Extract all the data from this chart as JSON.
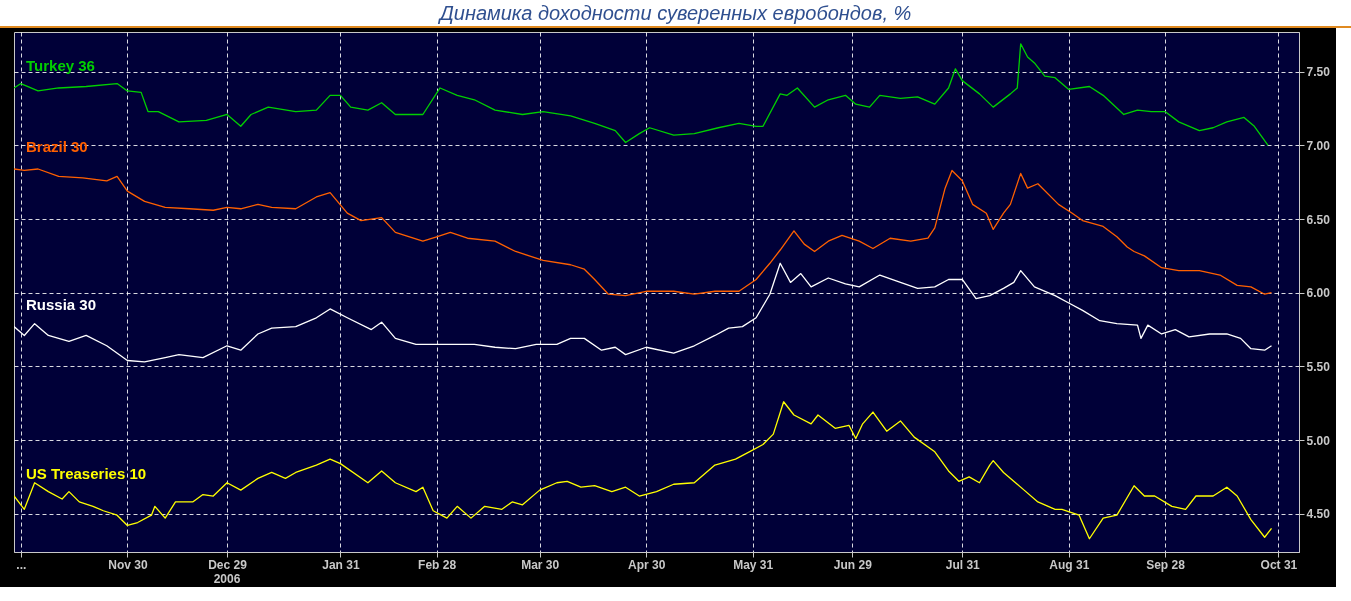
{
  "chart_data": {
    "type": "line",
    "title": "Динамика доходности суверенных евробондов, %",
    "xlim": [
      "2005-10-28",
      "2006-11-06"
    ],
    "ylim": [
      4.24,
      7.77
    ],
    "xticks": [
      {
        "value": "2005-10-30",
        "label": "..."
      },
      {
        "value": "2005-11-30",
        "label": "Nov 30"
      },
      {
        "value": "2005-12-29",
        "label": "Dec 29"
      },
      {
        "value": "2006-01-31",
        "label": "Jan 31"
      },
      {
        "value": "2006-02-28",
        "label": "Feb 28"
      },
      {
        "value": "2006-03-30",
        "label": "Mar 30"
      },
      {
        "value": "2006-04-30",
        "label": "Apr 30"
      },
      {
        "value": "2006-05-31",
        "label": "May 31"
      },
      {
        "value": "2006-06-29",
        "label": "Jun 29"
      },
      {
        "value": "2006-07-31",
        "label": "Jul 31"
      },
      {
        "value": "2006-08-31",
        "label": "Aug 31"
      },
      {
        "value": "2006-09-28",
        "label": "Sep 28"
      },
      {
        "value": "2006-10-31",
        "label": "Oct 31"
      }
    ],
    "yticks": [
      {
        "value": 4.5,
        "label": "4.50"
      },
      {
        "value": 5,
        "label": "5.00"
      },
      {
        "value": 5.5,
        "label": "5.50"
      },
      {
        "value": 6,
        "label": "6.00"
      },
      {
        "value": 6.5,
        "label": "6.50"
      },
      {
        "value": 7,
        "label": "7.00"
      },
      {
        "value": 7.5,
        "label": "7.50"
      }
    ],
    "grid": true,
    "annotations": [
      "2006"
    ],
    "series": [
      {
        "name": "Turkey 36",
        "color": "#00d000",
        "x": [
          "2005-10-28",
          "2005-10-30",
          "2005-11-04",
          "2005-11-10",
          "2005-11-18",
          "2005-11-27",
          "2005-11-30",
          "2005-12-04",
          "2005-12-06",
          "2005-12-09",
          "2005-12-15",
          "2005-12-23",
          "2005-12-29",
          "2006-01-02",
          "2006-01-05",
          "2006-01-10",
          "2006-01-18",
          "2006-01-24",
          "2006-01-28",
          "2006-01-31",
          "2006-02-03",
          "2006-02-08",
          "2006-02-12",
          "2006-02-16",
          "2006-02-24",
          "2006-03-01",
          "2006-03-06",
          "2006-03-11",
          "2006-03-17",
          "2006-03-25",
          "2006-03-31",
          "2006-04-08",
          "2006-04-15",
          "2006-04-21",
          "2006-04-24",
          "2006-04-28",
          "2006-05-01",
          "2006-05-08",
          "2006-05-14",
          "2006-05-21",
          "2006-05-27",
          "2006-06-01",
          "2006-06-03",
          "2006-06-08",
          "2006-06-10",
          "2006-06-13",
          "2006-06-18",
          "2006-06-22",
          "2006-06-27",
          "2006-06-30",
          "2006-07-04",
          "2006-07-07",
          "2006-07-13",
          "2006-07-18",
          "2006-07-23",
          "2006-07-27",
          "2006-07-29",
          "2006-07-31",
          "2006-08-05",
          "2006-08-09",
          "2006-08-14",
          "2006-08-16",
          "2006-08-17",
          "2006-08-19",
          "2006-08-21",
          "2006-08-24",
          "2006-08-27",
          "2006-08-31",
          "2006-09-06",
          "2006-09-10",
          "2006-09-16",
          "2006-09-20",
          "2006-09-24",
          "2006-09-28",
          "2006-10-02",
          "2006-10-08",
          "2006-10-12",
          "2006-10-16",
          "2006-10-21",
          "2006-10-24",
          "2006-10-28"
        ],
        "values": [
          7.39,
          7.42,
          7.37,
          7.39,
          7.4,
          7.42,
          7.37,
          7.36,
          7.23,
          7.23,
          7.16,
          7.17,
          7.21,
          7.13,
          7.21,
          7.26,
          7.23,
          7.24,
          7.34,
          7.34,
          7.26,
          7.24,
          7.29,
          7.21,
          7.21,
          7.39,
          7.34,
          7.31,
          7.24,
          7.21,
          7.23,
          7.2,
          7.15,
          7.1,
          7.02,
          7.08,
          7.12,
          7.07,
          7.08,
          7.12,
          7.15,
          7.13,
          7.13,
          7.35,
          7.34,
          7.39,
          7.26,
          7.31,
          7.34,
          7.28,
          7.26,
          7.34,
          7.32,
          7.33,
          7.28,
          7.39,
          7.52,
          7.44,
          7.35,
          7.26,
          7.35,
          7.39,
          7.69,
          7.6,
          7.56,
          7.47,
          7.46,
          7.38,
          7.4,
          7.34,
          7.21,
          7.24,
          7.23,
          7.23,
          7.16,
          7.1,
          7.12,
          7.16,
          7.19,
          7.13,
          7.0
        ]
      },
      {
        "name": "Brazil 30",
        "color": "#ff6000",
        "x": [
          "2005-10-28",
          "2005-10-31",
          "2005-11-04",
          "2005-11-10",
          "2005-11-17",
          "2005-11-24",
          "2005-11-27",
          "2005-11-30",
          "2005-12-05",
          "2005-12-11",
          "2005-12-18",
          "2005-12-25",
          "2005-12-29",
          "2006-01-02",
          "2006-01-07",
          "2006-01-11",
          "2006-01-18",
          "2006-01-24",
          "2006-01-28",
          "2006-02-02",
          "2006-02-06",
          "2006-02-12",
          "2006-02-16",
          "2006-02-24",
          "2006-02-28",
          "2006-03-04",
          "2006-03-09",
          "2006-03-17",
          "2006-03-23",
          "2006-03-31",
          "2006-04-08",
          "2006-04-12",
          "2006-04-15",
          "2006-04-19",
          "2006-04-24",
          "2006-04-30",
          "2006-05-08",
          "2006-05-14",
          "2006-05-20",
          "2006-05-27",
          "2006-06-01",
          "2006-06-05",
          "2006-06-08",
          "2006-06-12",
          "2006-06-15",
          "2006-06-18",
          "2006-06-22",
          "2006-06-26",
          "2006-07-01",
          "2006-07-05",
          "2006-07-10",
          "2006-07-16",
          "2006-07-21",
          "2006-07-23",
          "2006-07-26",
          "2006-07-28",
          "2006-07-31",
          "2006-08-03",
          "2006-08-07",
          "2006-08-09",
          "2006-08-12",
          "2006-08-14",
          "2006-08-17",
          "2006-08-19",
          "2006-08-22",
          "2006-08-28",
          "2006-09-01",
          "2006-09-04",
          "2006-09-10",
          "2006-09-14",
          "2006-09-17",
          "2006-09-19",
          "2006-09-22",
          "2006-09-27",
          "2006-10-02",
          "2006-10-08",
          "2006-10-14",
          "2006-10-19",
          "2006-10-23",
          "2006-10-27",
          "2006-10-29"
        ],
        "values": [
          6.84,
          6.83,
          6.84,
          6.79,
          6.78,
          6.76,
          6.79,
          6.69,
          6.62,
          6.58,
          6.57,
          6.56,
          6.58,
          6.57,
          6.6,
          6.58,
          6.57,
          6.65,
          6.68,
          6.54,
          6.49,
          6.51,
          6.41,
          6.35,
          6.38,
          6.41,
          6.37,
          6.35,
          6.28,
          6.22,
          6.19,
          6.16,
          6.09,
          5.99,
          5.98,
          6.01,
          6.01,
          5.99,
          6.01,
          6.01,
          6.09,
          6.2,
          6.29,
          6.42,
          6.33,
          6.28,
          6.35,
          6.39,
          6.35,
          6.3,
          6.37,
          6.35,
          6.37,
          6.44,
          6.71,
          6.83,
          6.76,
          6.6,
          6.54,
          6.43,
          6.54,
          6.6,
          6.81,
          6.71,
          6.74,
          6.6,
          6.54,
          6.49,
          6.45,
          6.38,
          6.31,
          6.28,
          6.25,
          6.17,
          6.15,
          6.15,
          6.12,
          6.05,
          6.04,
          5.99,
          6.0
        ]
      },
      {
        "name": "Russia 30",
        "color": "#ffffff",
        "x": [
          "2005-10-28",
          "2005-10-31",
          "2005-11-03",
          "2005-11-07",
          "2005-11-13",
          "2005-11-18",
          "2005-11-24",
          "2005-11-30",
          "2005-12-05",
          "2005-12-11",
          "2005-12-15",
          "2005-12-22",
          "2005-12-29",
          "2006-01-02",
          "2006-01-07",
          "2006-01-11",
          "2006-01-18",
          "2006-01-24",
          "2006-01-28",
          "2006-02-02",
          "2006-02-09",
          "2006-02-12",
          "2006-02-16",
          "2006-02-22",
          "2006-02-28",
          "2006-03-06",
          "2006-03-11",
          "2006-03-17",
          "2006-03-23",
          "2006-03-29",
          "2006-04-04",
          "2006-04-08",
          "2006-04-12",
          "2006-04-17",
          "2006-04-21",
          "2006-04-24",
          "2006-04-30",
          "2006-05-08",
          "2006-05-14",
          "2006-05-20",
          "2006-05-24",
          "2006-05-28",
          "2006-06-01",
          "2006-06-05",
          "2006-06-08",
          "2006-06-11",
          "2006-06-14",
          "2006-06-17",
          "2006-06-22",
          "2006-06-27",
          "2006-07-01",
          "2006-07-07",
          "2006-07-13",
          "2006-07-18",
          "2006-07-23",
          "2006-07-27",
          "2006-07-31",
          "2006-08-04",
          "2006-08-08",
          "2006-08-12",
          "2006-08-15",
          "2006-08-17",
          "2006-08-21",
          "2006-08-27",
          "2006-08-31",
          "2006-09-04",
          "2006-09-09",
          "2006-09-14",
          "2006-09-20",
          "2006-09-21",
          "2006-09-23",
          "2006-09-27",
          "2006-10-01",
          "2006-10-05",
          "2006-10-11",
          "2006-10-16",
          "2006-10-20",
          "2006-10-23",
          "2006-10-27",
          "2006-10-29"
        ],
        "values": [
          5.77,
          5.71,
          5.79,
          5.71,
          5.67,
          5.71,
          5.64,
          5.54,
          5.53,
          5.56,
          5.58,
          5.56,
          5.64,
          5.61,
          5.72,
          5.76,
          5.77,
          5.83,
          5.89,
          5.83,
          5.75,
          5.8,
          5.69,
          5.65,
          5.65,
          5.65,
          5.65,
          5.63,
          5.62,
          5.65,
          5.65,
          5.69,
          5.69,
          5.61,
          5.63,
          5.58,
          5.63,
          5.59,
          5.64,
          5.71,
          5.76,
          5.77,
          5.83,
          5.99,
          6.2,
          6.07,
          6.13,
          6.04,
          6.1,
          6.06,
          6.04,
          6.12,
          6.07,
          6.03,
          6.04,
          6.09,
          6.09,
          5.96,
          5.98,
          6.03,
          6.07,
          6.15,
          6.04,
          5.98,
          5.93,
          5.88,
          5.81,
          5.79,
          5.78,
          5.69,
          5.78,
          5.72,
          5.75,
          5.7,
          5.72,
          5.72,
          5.69,
          5.62,
          5.61,
          5.64
        ]
      },
      {
        "name": "US Treaseries 10",
        "color": "#ffff00",
        "x": [
          "2005-10-28",
          "2005-10-31",
          "2005-11-03",
          "2005-11-07",
          "2005-11-11",
          "2005-11-13",
          "2005-11-16",
          "2005-11-20",
          "2005-11-23",
          "2005-11-27",
          "2005-11-30",
          "2005-12-03",
          "2005-12-07",
          "2005-12-08",
          "2005-12-11",
          "2005-12-14",
          "2005-12-19",
          "2005-12-22",
          "2005-12-25",
          "2005-12-29",
          "2006-01-02",
          "2006-01-07",
          "2006-01-11",
          "2006-01-15",
          "2006-01-18",
          "2006-01-24",
          "2006-01-28",
          "2006-01-31",
          "2006-02-08",
          "2006-02-12",
          "2006-02-16",
          "2006-02-22",
          "2006-02-24",
          "2006-02-27",
          "2006-03-03",
          "2006-03-06",
          "2006-03-10",
          "2006-03-14",
          "2006-03-19",
          "2006-03-22",
          "2006-03-25",
          "2006-03-30",
          "2006-04-04",
          "2006-04-07",
          "2006-04-11",
          "2006-04-15",
          "2006-04-20",
          "2006-04-24",
          "2006-04-28",
          "2006-05-03",
          "2006-05-08",
          "2006-05-14",
          "2006-05-20",
          "2006-05-26",
          "2006-05-30",
          "2006-06-03",
          "2006-06-06",
          "2006-06-09",
          "2006-06-12",
          "2006-06-17",
          "2006-06-19",
          "2006-06-24",
          "2006-06-28",
          "2006-06-30",
          "2006-07-02",
          "2006-07-05",
          "2006-07-09",
          "2006-07-13",
          "2006-07-17",
          "2006-07-23",
          "2006-07-27",
          "2006-07-30",
          "2006-08-02",
          "2006-08-05",
          "2006-08-08",
          "2006-08-09",
          "2006-08-12",
          "2006-08-18",
          "2006-08-22",
          "2006-08-27",
          "2006-08-29",
          "2006-09-03",
          "2006-09-06",
          "2006-09-10",
          "2006-09-14",
          "2006-09-19",
          "2006-09-22",
          "2006-09-25",
          "2006-09-30",
          "2006-10-04",
          "2006-10-07",
          "2006-10-12",
          "2006-10-16",
          "2006-10-19",
          "2006-10-23",
          "2006-10-27",
          "2006-10-29"
        ],
        "values": [
          4.62,
          4.53,
          4.71,
          4.65,
          4.6,
          4.65,
          4.58,
          4.55,
          4.52,
          4.49,
          4.42,
          4.44,
          4.49,
          4.55,
          4.47,
          4.58,
          4.58,
          4.63,
          4.62,
          4.71,
          4.66,
          4.74,
          4.78,
          4.74,
          4.78,
          4.83,
          4.87,
          4.84,
          4.71,
          4.79,
          4.71,
          4.65,
          4.68,
          4.52,
          4.47,
          4.55,
          4.47,
          4.55,
          4.53,
          4.58,
          4.56,
          4.66,
          4.71,
          4.72,
          4.68,
          4.69,
          4.65,
          4.68,
          4.62,
          4.65,
          4.7,
          4.71,
          4.83,
          4.87,
          4.92,
          4.97,
          5.04,
          5.26,
          5.17,
          5.11,
          5.17,
          5.08,
          5.1,
          5.01,
          5.11,
          5.19,
          5.06,
          5.13,
          5.02,
          4.92,
          4.79,
          4.72,
          4.75,
          4.71,
          4.83,
          4.86,
          4.78,
          4.66,
          4.58,
          4.53,
          4.53,
          4.49,
          4.33,
          4.47,
          4.49,
          4.69,
          4.62,
          4.62,
          4.55,
          4.53,
          4.62,
          4.62,
          4.68,
          4.62,
          4.46,
          4.34,
          4.4
        ]
      }
    ]
  }
}
